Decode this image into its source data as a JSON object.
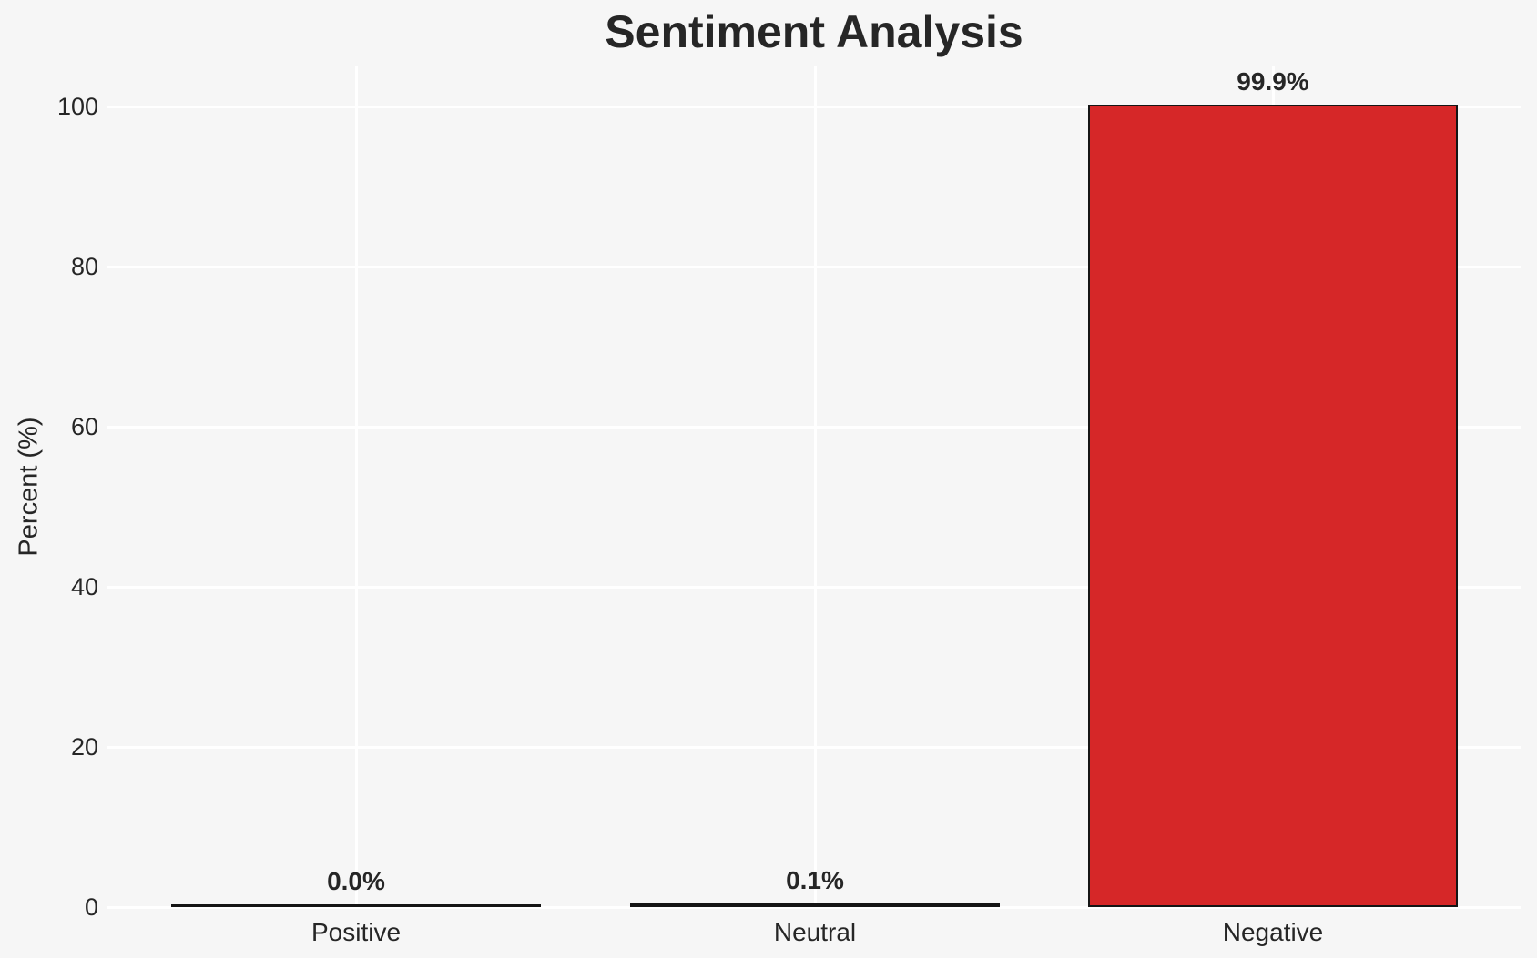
{
  "chart_data": {
    "type": "bar",
    "title": "Sentiment Analysis",
    "xlabel": "",
    "ylabel": "Percent (%)",
    "categories": [
      "Positive",
      "Neutral",
      "Negative"
    ],
    "values": [
      0.0,
      0.1,
      99.9
    ],
    "value_labels": [
      "0.0%",
      "0.1%",
      "99.9%"
    ],
    "yticks": [
      0,
      20,
      40,
      60,
      80,
      100
    ],
    "ytick_labels": [
      "0",
      "20",
      "40",
      "60",
      "80",
      "100"
    ],
    "ylim": [
      0,
      105
    ],
    "grid": true,
    "legend": false,
    "colors": {
      "background": "#f6f6f6",
      "gridline": "#ffffff",
      "bar_fill": "#d62728",
      "bar_edge": "#151515",
      "text": "#262626"
    }
  }
}
